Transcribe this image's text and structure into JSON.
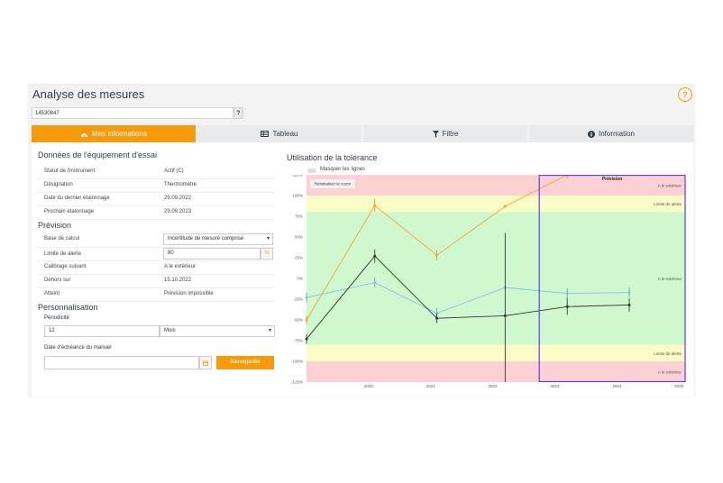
{
  "header": {
    "title": "Analyse des mesures",
    "help_glyph": "?"
  },
  "search": {
    "value": "14530847",
    "button": "?"
  },
  "tabs": [
    {
      "label": "Mes informations",
      "icon": "dashboard-icon"
    },
    {
      "label": "Tableau",
      "icon": "table-icon"
    },
    {
      "label": "Filtre",
      "icon": "filter-icon"
    },
    {
      "label": "Information",
      "icon": "info-icon"
    }
  ],
  "equipment": {
    "title": "Données de l'équipement d'essai",
    "rows": [
      {
        "label": "Statut de l'instrument",
        "value": "Actif (C)"
      },
      {
        "label": "Désignation",
        "value": "Thermomètre"
      },
      {
        "label": "Date du dernier étalonnage",
        "value": "29.09.2022"
      },
      {
        "label": "Prochain étalonnage",
        "value": "29.09.2023"
      }
    ]
  },
  "prevision": {
    "title": "Prévision",
    "base_label": "Base de calcul",
    "base_value": "Incertitude de mesure comprise",
    "limit_label": "Limite de alerte",
    "limit_value": "80",
    "limit_unit": "%",
    "rows": [
      {
        "label": "Calibrage suivant",
        "value": "A le extérieur"
      },
      {
        "label": "Dehors sur",
        "value": "15.10.2022"
      },
      {
        "label": "Atteint",
        "value": "Prévision impossible"
      }
    ]
  },
  "perso": {
    "title": "Personnalisation",
    "periodicity_label": "Périodicité",
    "periodicity_value": "12",
    "unit_value": "Mois",
    "due_label": "Date d'échéance du manuel",
    "due_value": "",
    "save_label": "Sauvegarder"
  },
  "chart_panel": {
    "title": "Utilisation de la tolérance",
    "toggle_label": "Masquer les lignes",
    "reset_zoom": "Réinitialiser le zoom"
  },
  "chart_data": {
    "type": "line",
    "x_ticks": [
      "2020",
      "2021",
      "2022",
      "2023",
      "2024",
      "2025"
    ],
    "y_ticks": [
      "125%",
      "100%",
      "75%",
      "50%",
      "25%",
      "0%",
      "-25%",
      "-50%",
      "-75%",
      "-100%",
      "-125%"
    ],
    "ylim": [
      -125,
      125
    ],
    "xlim": [
      2019.5,
      2025.6
    ],
    "bands": [
      {
        "from": 100,
        "to": 125,
        "color": "#fdd0d4",
        "label": "A le extérieur"
      },
      {
        "from": 80,
        "to": 100,
        "color": "#fbfbc6",
        "label": "Limite de alerte"
      },
      {
        "from": -80,
        "to": 80,
        "color": "#cff8cf",
        "label": "A le extérieur"
      },
      {
        "from": -100,
        "to": -80,
        "color": "#fbfbc6",
        "label": "Limite de alerte"
      },
      {
        "from": -125,
        "to": -100,
        "color": "#fdd0d4",
        "label": "A le extérieur"
      }
    ],
    "forecast": {
      "label": "Prévision",
      "from": 2023.25,
      "to": 2025.6,
      "color": "#5b3cf5"
    },
    "series": [
      {
        "color": "#f5a623",
        "x": [
          2019.5,
          2020.6,
          2021.6,
          2022.7,
          2023.7
        ],
        "y": [
          -50,
          88,
          28,
          87,
          125
        ],
        "err": [
          5,
          8,
          6,
          0,
          4
        ]
      },
      {
        "color": "#8bbee6",
        "x": [
          2019.5,
          2020.6,
          2021.6,
          2022.7,
          2023.7,
          2024.7
        ],
        "y": [
          -23,
          -5,
          -42,
          -11,
          -18,
          -17
        ],
        "err": [
          6,
          6,
          6,
          0,
          6,
          6
        ]
      },
      {
        "color": "#333333",
        "x": [
          2019.5,
          2020.6,
          2021.6,
          2022.7,
          2023.7,
          2024.7
        ],
        "y": [
          -73,
          27,
          -48,
          -45,
          -34,
          -32
        ],
        "err": [
          6,
          8,
          6,
          100,
          10,
          8
        ]
      }
    ]
  }
}
